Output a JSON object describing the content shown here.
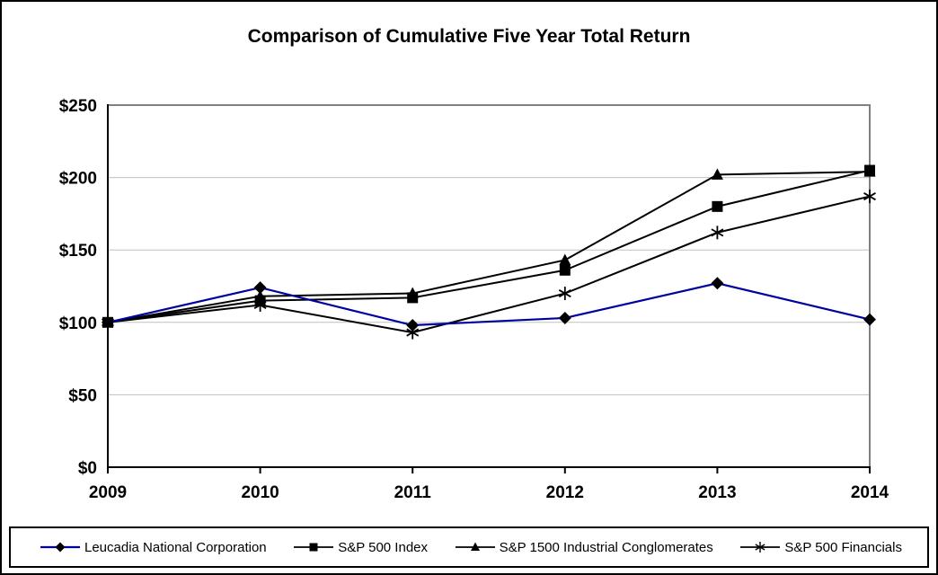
{
  "chart_data": {
    "type": "line",
    "title": "Comparison of Cumulative Five Year Total Return",
    "x_categories": [
      "2009",
      "2010",
      "2011",
      "2012",
      "2013",
      "2014"
    ],
    "ylim": [
      0,
      250
    ],
    "ytick_step": 50,
    "ytick_labels": [
      "$0",
      "$50",
      "$100",
      "$150",
      "$200",
      "$250"
    ],
    "grid": true,
    "legend_position": "bottom",
    "series": [
      {
        "name": "Leucadia National Corporation",
        "marker": "diamond",
        "line_color": "#0000a0",
        "values": [
          100,
          124,
          98,
          103,
          127,
          102
        ]
      },
      {
        "name": "S&P 500 Index",
        "marker": "square",
        "line_color": "#000000",
        "values": [
          100,
          115,
          117,
          136,
          180,
          205
        ]
      },
      {
        "name": "S&P 1500 Industrial Conglomerates",
        "marker": "triangle",
        "line_color": "#000000",
        "values": [
          100,
          118,
          120,
          143,
          202,
          204
        ]
      },
      {
        "name": "S&P 500 Financials",
        "marker": "star",
        "line_color": "#000000",
        "values": [
          100,
          112,
          93,
          120,
          162,
          187
        ]
      }
    ],
    "marker_color": "#000000",
    "colors": {
      "grid": "#c0c0c0",
      "plot_border": "#808080",
      "axis": "#000000",
      "background": "#ffffff"
    }
  }
}
